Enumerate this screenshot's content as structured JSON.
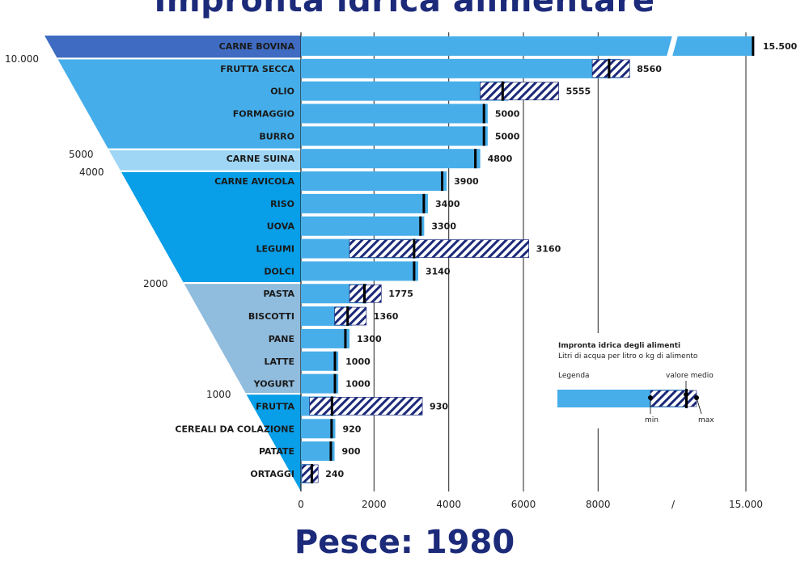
{
  "title": "Impronta idrica alimentare",
  "footer": "Pesce: 1980",
  "chart_data": {
    "type": "bar",
    "orientation": "horizontal",
    "xlim": [
      0,
      15500
    ],
    "axis_break": true,
    "x_ticks": [
      "0",
      "2000",
      "4000",
      "6000",
      "8000",
      "/",
      "15.000"
    ],
    "categories": [
      "CARNE BOVINA",
      "FRUTTA SECCA",
      "OLIO",
      "FORMAGGIO",
      "BURRO",
      "CARNE SUINA",
      "CARNE AVICOLA",
      "RISO",
      "UOVA",
      "LEGUMI",
      "DOLCI",
      "PASTA",
      "BISCOTTI",
      "PANE",
      "LATTE",
      "YOGURT",
      "FRUTTA",
      "CEREALI DA COLAZIONE",
      "PATATE",
      "ORTAGGI"
    ],
    "values": [
      15500,
      8560,
      5555,
      5000,
      5000,
      4800,
      3900,
      3400,
      3300,
      3160,
      3140,
      1775,
      1360,
      1300,
      1000,
      1000,
      930,
      920,
      900,
      240
    ],
    "value_labels": [
      "15.500",
      "8560",
      "5555",
      "5000",
      "5000",
      "4800",
      "3900",
      "3400",
      "3300",
      "3160",
      "3140",
      "1775",
      "1360",
      "1300",
      "1000",
      "1000",
      "930",
      "920",
      "900",
      "240"
    ],
    "ranges": [
      null,
      [
        7800,
        8800
      ],
      [
        4800,
        6900
      ],
      null,
      null,
      null,
      null,
      null,
      null,
      [
        1300,
        6100
      ],
      null,
      [
        1300,
        2150
      ],
      [
        900,
        1750
      ],
      null,
      null,
      null,
      [
        230,
        3250
      ],
      null,
      null,
      [
        20,
        460
      ]
    ],
    "median": [
      15500,
      8250,
      5400,
      4900,
      4900,
      4670,
      3780,
      3290,
      3200,
      3030,
      3030,
      1700,
      1250,
      1190,
      910,
      910,
      830,
      820,
      800,
      290
    ],
    "pyramid_levels": [
      "10.000",
      "5000",
      "4000",
      "2000",
      "1000"
    ],
    "legend": {
      "title": "Impronta idrica degli alimenti",
      "subtitle": "Litri di acqua per litro o kg di alimento",
      "label": "Legenda",
      "avg": "valore medio",
      "min": "min",
      "max": "max"
    },
    "colors": {
      "bar": "#47aeea",
      "hatch": "#1c2a7a",
      "band_dark": "#3f6cc2",
      "band_blue": "#45aeea",
      "band_light": "#9fd6f6",
      "band_mid": "#089ee8",
      "band_grey": "#90bcde",
      "title": "#1c2a7a"
    }
  }
}
